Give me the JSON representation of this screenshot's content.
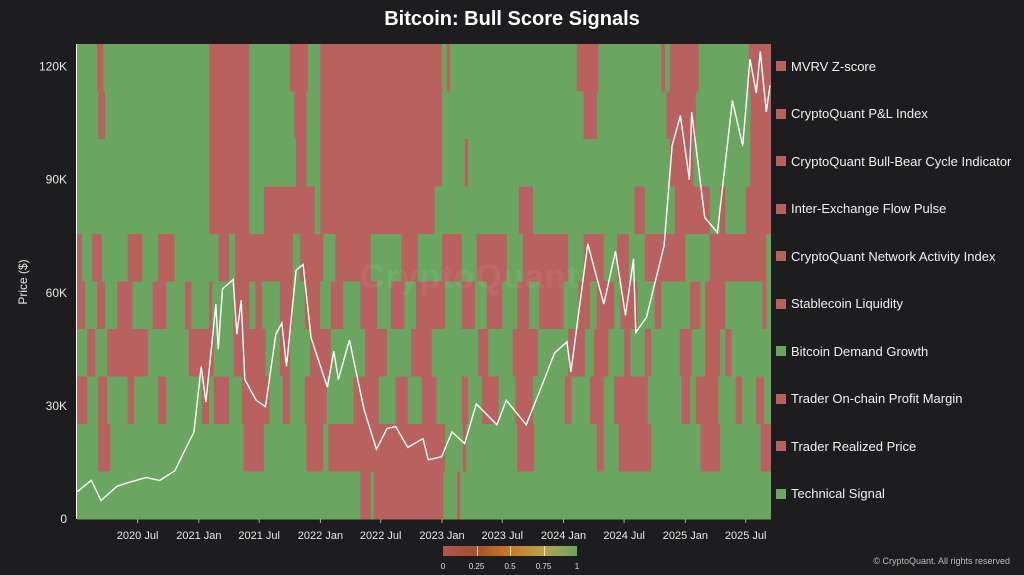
{
  "chart_data": {
    "type": "heatmap",
    "title": "Bitcoin: Bull Score Signals",
    "ylabel": "Price ($)",
    "ylim": [
      0,
      126000
    ],
    "yticks": [
      {
        "value": 0,
        "label": "0"
      },
      {
        "value": 30000,
        "label": "30K"
      },
      {
        "value": 60000,
        "label": "60K"
      },
      {
        "value": 90000,
        "label": "90K"
      },
      {
        "value": 120000,
        "label": "120K"
      }
    ],
    "xlim": [
      "2020-01-01",
      "2025-09-15"
    ],
    "xticks": [
      {
        "date": "2020-07-01",
        "label": "2020 Jul"
      },
      {
        "date": "2021-01-01",
        "label": "2021 Jan"
      },
      {
        "date": "2021-07-01",
        "label": "2021 Jul"
      },
      {
        "date": "2022-01-01",
        "label": "2022 Jan"
      },
      {
        "date": "2022-07-01",
        "label": "2022 Jul"
      },
      {
        "date": "2023-01-01",
        "label": "2023 Jan"
      },
      {
        "date": "2023-07-01",
        "label": "2023 Jul"
      },
      {
        "date": "2024-01-01",
        "label": "2024 Jan"
      },
      {
        "date": "2024-07-01",
        "label": "2024 Jul"
      },
      {
        "date": "2025-01-01",
        "label": "2025 Jan"
      },
      {
        "date": "2025-07-01",
        "label": "2025 Jul"
      }
    ],
    "colors": {
      "bull": "#6ba661",
      "bear": "#b8615f",
      "line": "#ffffff"
    },
    "signals": [
      {
        "name": "MVRV Z-score",
        "legend_color": "#b8615f",
        "bear_periods": [
          [
            "2020-03-01",
            "2020-03-20"
          ],
          [
            "2021-02-01",
            "2021-06-01"
          ],
          [
            "2021-10-01",
            "2021-11-25"
          ],
          [
            "2022-01-01",
            "2023-01-01"
          ],
          [
            "2023-01-15",
            "2023-01-25"
          ],
          [
            "2024-02-10",
            "2024-04-15"
          ],
          [
            "2024-10-20",
            "2024-11-01"
          ],
          [
            "2024-11-15",
            "2025-02-10"
          ],
          [
            "2025-07-10",
            "2025-09-15"
          ]
        ]
      },
      {
        "name": "CryptoQuant P&L Index",
        "legend_color": "#b8615f",
        "bear_periods": [
          [
            "2020-03-05",
            "2020-03-25"
          ],
          [
            "2021-02-01",
            "2021-06-01"
          ],
          [
            "2021-10-15",
            "2021-11-20"
          ],
          [
            "2022-01-01",
            "2023-01-01"
          ],
          [
            "2024-03-01",
            "2024-04-10"
          ],
          [
            "2024-11-05",
            "2025-02-01"
          ],
          [
            "2025-07-15",
            "2025-09-15"
          ]
        ]
      },
      {
        "name": "CryptoQuant Bull-Bear Cycle Indicator",
        "legend_color": "#b8615f",
        "bear_periods": [
          [
            "2021-02-01",
            "2021-06-01"
          ],
          [
            "2021-10-20",
            "2021-11-20"
          ],
          [
            "2022-01-01",
            "2023-01-01"
          ],
          [
            "2023-03-10",
            "2023-03-20"
          ],
          [
            "2024-11-15",
            "2025-01-25"
          ],
          [
            "2025-07-15",
            "2025-09-15"
          ]
        ]
      },
      {
        "name": "Inter-Exchange Flow Pulse",
        "legend_color": "#b8615f",
        "bear_periods": [
          [
            "2021-02-01",
            "2021-06-01"
          ],
          [
            "2021-07-15",
            "2021-12-15"
          ],
          [
            "2022-01-01",
            "2022-12-10"
          ],
          [
            "2023-08-20",
            "2023-10-01"
          ],
          [
            "2024-08-01",
            "2024-09-01"
          ],
          [
            "2024-12-01",
            "2025-03-15"
          ],
          [
            "2025-04-15",
            "2025-05-01"
          ],
          [
            "2025-07-01",
            "2025-09-15"
          ]
        ]
      },
      {
        "name": "CryptoQuant Network Activity Index",
        "legend_color": "#b8615f",
        "bear_periods": [
          [
            "2020-01-01",
            "2020-01-15"
          ],
          [
            "2020-02-15",
            "2020-03-15"
          ],
          [
            "2020-06-01",
            "2020-07-15"
          ],
          [
            "2020-09-01",
            "2020-10-20"
          ],
          [
            "2021-03-01",
            "2021-04-01"
          ],
          [
            "2021-04-20",
            "2021-10-10"
          ],
          [
            "2021-11-01",
            "2022-01-10"
          ],
          [
            "2022-02-15",
            "2022-06-01"
          ],
          [
            "2022-09-01",
            "2022-10-20"
          ],
          [
            "2023-01-01",
            "2023-03-01"
          ],
          [
            "2023-04-15",
            "2023-07-15"
          ],
          [
            "2023-09-01",
            "2024-01-15"
          ],
          [
            "2024-03-01",
            "2024-05-01"
          ],
          [
            "2024-06-10",
            "2024-07-15"
          ],
          [
            "2024-09-01",
            "2025-01-01"
          ],
          [
            "2025-03-15",
            "2025-09-01"
          ]
        ]
      },
      {
        "name": "Stablecoin Liquidity",
        "legend_color": "#b8615f",
        "bear_periods": [
          [
            "2020-01-01",
            "2020-01-25"
          ],
          [
            "2020-03-01",
            "2020-03-25"
          ],
          [
            "2020-05-01",
            "2020-06-15"
          ],
          [
            "2020-08-15",
            "2020-09-25"
          ],
          [
            "2020-11-20",
            "2020-12-10"
          ],
          [
            "2021-02-01",
            "2021-02-10"
          ],
          [
            "2021-04-15",
            "2021-06-01"
          ],
          [
            "2021-06-20",
            "2021-07-10"
          ],
          [
            "2021-09-01",
            "2021-10-10"
          ],
          [
            "2021-11-15",
            "2021-12-31"
          ],
          [
            "2022-02-01",
            "2022-03-10"
          ],
          [
            "2022-05-01",
            "2022-06-20"
          ],
          [
            "2022-08-01",
            "2022-09-10"
          ],
          [
            "2022-10-15",
            "2023-01-10"
          ],
          [
            "2023-03-01",
            "2023-04-10"
          ],
          [
            "2023-05-15",
            "2023-07-01"
          ],
          [
            "2023-08-15",
            "2023-09-20"
          ],
          [
            "2023-10-20",
            "2024-01-01"
          ],
          [
            "2024-02-15",
            "2024-03-20"
          ],
          [
            "2024-04-10",
            "2024-06-01"
          ],
          [
            "2024-06-20",
            "2024-08-10"
          ],
          [
            "2024-10-01",
            "2024-10-20"
          ],
          [
            "2025-01-15",
            "2025-02-15"
          ],
          [
            "2025-03-01",
            "2025-05-01"
          ],
          [
            "2025-08-20",
            "2025-09-01"
          ]
        ]
      },
      {
        "name": "Bitcoin Demand Growth",
        "legend_color": "#6ba661",
        "bear_periods": [
          [
            "2020-02-01",
            "2020-02-25"
          ],
          [
            "2020-04-01",
            "2020-08-01"
          ],
          [
            "2020-12-01",
            "2021-02-15"
          ],
          [
            "2021-04-15",
            "2021-07-20"
          ],
          [
            "2021-09-01",
            "2021-10-01"
          ],
          [
            "2021-12-01",
            "2022-02-01"
          ],
          [
            "2022-05-15",
            "2022-07-20"
          ],
          [
            "2022-10-01",
            "2022-12-01"
          ],
          [
            "2023-04-20",
            "2023-05-20"
          ],
          [
            "2023-08-01",
            "2023-10-15"
          ],
          [
            "2024-01-15",
            "2024-03-05"
          ],
          [
            "2024-04-01",
            "2024-05-15"
          ],
          [
            "2024-07-01",
            "2024-07-20"
          ],
          [
            "2024-09-01",
            "2024-09-20"
          ],
          [
            "2024-12-15",
            "2025-01-20"
          ],
          [
            "2025-03-01",
            "2025-04-15"
          ],
          [
            "2025-05-01",
            "2025-05-20"
          ]
        ]
      },
      {
        "name": "Trader On-chain Profit Margin",
        "legend_color": "#b8615f",
        "bear_periods": [
          [
            "2020-01-01",
            "2020-02-01"
          ],
          [
            "2020-03-05",
            "2020-04-01"
          ],
          [
            "2020-06-01",
            "2020-06-20"
          ],
          [
            "2020-09-01",
            "2020-09-25"
          ],
          [
            "2021-01-10",
            "2021-02-01"
          ],
          [
            "2021-02-15",
            "2021-04-01"
          ],
          [
            "2021-05-10",
            "2021-08-01"
          ],
          [
            "2021-09-10",
            "2021-10-01"
          ],
          [
            "2021-11-15",
            "2022-01-20"
          ],
          [
            "2022-04-10",
            "2022-06-25"
          ],
          [
            "2022-08-15",
            "2022-09-20"
          ],
          [
            "2022-11-01",
            "2022-12-15"
          ],
          [
            "2023-03-01",
            "2023-03-20"
          ],
          [
            "2023-05-01",
            "2023-06-20"
          ],
          [
            "2023-08-10",
            "2023-10-01"
          ],
          [
            "2024-01-05",
            "2024-01-25"
          ],
          [
            "2024-03-20",
            "2024-05-01"
          ],
          [
            "2024-06-01",
            "2024-09-10"
          ],
          [
            "2024-12-20",
            "2025-01-15"
          ],
          [
            "2025-02-01",
            "2025-04-10"
          ],
          [
            "2025-06-01",
            "2025-06-20"
          ],
          [
            "2025-08-01",
            "2025-08-25"
          ]
        ]
      },
      {
        "name": "Trader Realized Price",
        "legend_color": "#b8615f",
        "bear_periods": [
          [
            "2020-03-05",
            "2020-04-10"
          ],
          [
            "2021-05-15",
            "2021-07-15"
          ],
          [
            "2021-11-20",
            "2022-01-10"
          ],
          [
            "2022-01-25",
            "2023-01-10"
          ],
          [
            "2023-03-05",
            "2023-03-15"
          ],
          [
            "2023-08-15",
            "2023-10-05"
          ],
          [
            "2024-04-10",
            "2024-05-01"
          ],
          [
            "2024-06-15",
            "2024-09-20"
          ],
          [
            "2025-02-15",
            "2025-04-15"
          ],
          [
            "2025-08-15",
            "2025-09-15"
          ]
        ]
      },
      {
        "name": "Technical Signal",
        "legend_color": "#6ba661",
        "bear_periods": [
          [
            "2022-05-01",
            "2022-06-01"
          ],
          [
            "2022-06-10",
            "2023-01-05"
          ],
          [
            "2023-02-15",
            "2023-02-25"
          ]
        ]
      }
    ],
    "price_series": [
      [
        "2020-01-01",
        7200
      ],
      [
        "2020-02-13",
        10300
      ],
      [
        "2020-03-13",
        4900
      ],
      [
        "2020-04-30",
        8700
      ],
      [
        "2020-06-01",
        9600
      ],
      [
        "2020-07-27",
        11000
      ],
      [
        "2020-09-05",
        10200
      ],
      [
        "2020-10-21",
        12800
      ],
      [
        "2020-11-24",
        19000
      ],
      [
        "2020-12-17",
        23000
      ],
      [
        "2021-01-08",
        40500
      ],
      [
        "2021-01-22",
        31000
      ],
      [
        "2021-02-21",
        57000
      ],
      [
        "2021-02-28",
        45000
      ],
      [
        "2021-03-13",
        61000
      ],
      [
        "2021-04-14",
        63500
      ],
      [
        "2021-04-25",
        49000
      ],
      [
        "2021-05-08",
        58000
      ],
      [
        "2021-05-19",
        37000
      ],
      [
        "2021-06-22",
        31500
      ],
      [
        "2021-07-20",
        29800
      ],
      [
        "2021-08-20",
        49000
      ],
      [
        "2021-09-07",
        52000
      ],
      [
        "2021-09-21",
        40500
      ],
      [
        "2021-10-20",
        66000
      ],
      [
        "2021-11-10",
        67500
      ],
      [
        "2021-12-04",
        48000
      ],
      [
        "2022-01-22",
        35000
      ],
      [
        "2022-02-10",
        44500
      ],
      [
        "2022-02-24",
        37000
      ],
      [
        "2022-03-29",
        47500
      ],
      [
        "2022-05-12",
        29000
      ],
      [
        "2022-06-18",
        18500
      ],
      [
        "2022-07-20",
        24000
      ],
      [
        "2022-08-15",
        24500
      ],
      [
        "2022-09-20",
        19000
      ],
      [
        "2022-11-05",
        21300
      ],
      [
        "2022-11-21",
        15700
      ],
      [
        "2022-12-31",
        16500
      ],
      [
        "2023-01-31",
        23100
      ],
      [
        "2023-03-10",
        20000
      ],
      [
        "2023-04-14",
        30500
      ],
      [
        "2023-06-15",
        25000
      ],
      [
        "2023-07-13",
        31500
      ],
      [
        "2023-09-11",
        25000
      ],
      [
        "2023-10-24",
        34500
      ],
      [
        "2023-12-05",
        44000
      ],
      [
        "2024-01-11",
        47000
      ],
      [
        "2024-01-23",
        39000
      ],
      [
        "2024-03-14",
        73000
      ],
      [
        "2024-05-01",
        57000
      ],
      [
        "2024-06-05",
        71000
      ],
      [
        "2024-07-05",
        54000
      ],
      [
        "2024-07-29",
        69000
      ],
      [
        "2024-08-05",
        49500
      ],
      [
        "2024-09-06",
        53500
      ],
      [
        "2024-10-29",
        72500
      ],
      [
        "2024-11-22",
        99000
      ],
      [
        "2024-12-17",
        107000
      ],
      [
        "2025-01-13",
        90000
      ],
      [
        "2025-01-20",
        108000
      ],
      [
        "2025-02-28",
        80000
      ],
      [
        "2025-04-07",
        76000
      ],
      [
        "2025-05-22",
        111000
      ],
      [
        "2025-06-22",
        99000
      ],
      [
        "2025-07-14",
        122000
      ],
      [
        "2025-08-02",
        113000
      ],
      [
        "2025-08-14",
        124000
      ],
      [
        "2025-09-01",
        108000
      ],
      [
        "2025-09-12",
        115000
      ]
    ],
    "colorbar": {
      "ticks": [
        "0",
        "0.25",
        "0.5",
        "0.75",
        "1"
      ]
    }
  },
  "credit": "© CryptoQuant. All rights reserved",
  "watermark": "CryptoQuant"
}
